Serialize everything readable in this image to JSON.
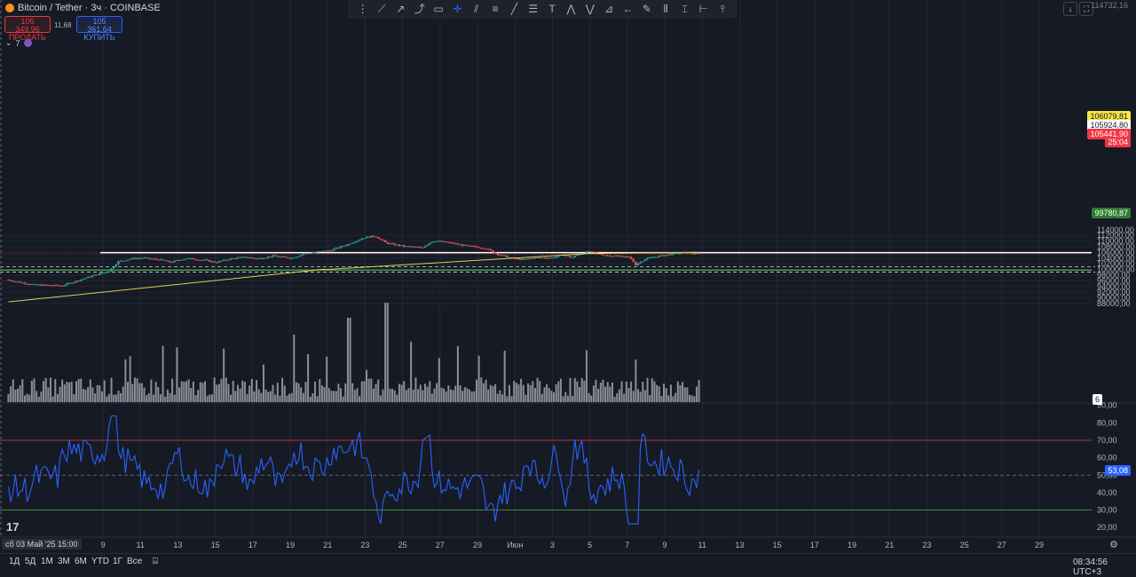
{
  "header": {
    "title": "Bitcoin / Tether · 3ч · COINBASE",
    "sell_price": "105 349,96",
    "sell_label": "ПРОДАТЬ",
    "spread": "11,68",
    "buy_price": "105 361,64",
    "buy_label": "КУПИТЬ",
    "indicators_toggle": "7"
  },
  "toolbar": {
    "tools": [
      "trend-line",
      "ray",
      "cursor",
      "rect",
      "crosshair",
      "channel",
      "fib",
      "parallel",
      "text",
      "pattern",
      "elliott",
      "forecast",
      "arrow",
      "brush",
      "measure",
      "long-position",
      "price-range",
      "date-range",
      "pin"
    ]
  },
  "window_buttons": {
    "down": "↓",
    "fullscreen": "⛶"
  },
  "price_axis": {
    "ticks": [
      "114000,00",
      "112000,00",
      "110000,00",
      "108000,00",
      "106000,00",
      "104000,00",
      "102000,00",
      "100000,00",
      "98000,00",
      "96000,00",
      "94000,00",
      "92000,00",
      "90000,00",
      "88000,00"
    ],
    "top_partial": "114732,16",
    "labels": {
      "yellow": "106079,81",
      "white": "105924,80",
      "red_price": "105441,90",
      "countdown": "25:04",
      "green": "99780,87"
    },
    "volume_badge": "6"
  },
  "rsi_axis": {
    "ticks": [
      "90,00",
      "80,00",
      "70,00",
      "60,00",
      "50,00",
      "40,00",
      "30,00",
      "20,00"
    ],
    "current": "53,08"
  },
  "time_axis": {
    "labels": [
      "9",
      "11",
      "13",
      "15",
      "17",
      "19",
      "21",
      "23",
      "25",
      "27",
      "29",
      "Июн",
      "3",
      "5",
      "7",
      "9",
      "11",
      "13",
      "15",
      "17",
      "19",
      "21",
      "23",
      "25",
      "27",
      "29"
    ],
    "cursor_date": "сб 03 Май '25   15:00"
  },
  "bottom_bar": {
    "timeframes": [
      "1Д",
      "5Д",
      "1М",
      "3М",
      "6М",
      "YTD",
      "1Г",
      "Все"
    ],
    "clock": "08:34:56 UTC+3"
  },
  "colors": {
    "background": "#161a25",
    "up": "#26a69a",
    "down": "#ef5350",
    "ma": "#e0d050",
    "rsi": "#2962ff",
    "grid": "#232733"
  },
  "chart_data": {
    "type": "candlestick",
    "timeframe": "3h",
    "price_range": [
      87000,
      114600
    ],
    "ma_line_color": "yellow",
    "horizontal_lines": {
      "white": 105924.8,
      "red": 105441.9,
      "green": 99780.87,
      "dashed": [
        101000,
        99100
      ]
    },
    "anchors": [
      {
        "d": 0,
        "p": 96400
      },
      {
        "d": 1.5,
        "p": 94600
      },
      {
        "d": 3,
        "p": 94300
      },
      {
        "d": 4,
        "p": 96500
      },
      {
        "d": 5.5,
        "p": 99500
      },
      {
        "d": 6,
        "p": 102800
      },
      {
        "d": 6.7,
        "p": 103800
      },
      {
        "d": 7.3,
        "p": 104100
      },
      {
        "d": 8.2,
        "p": 103400
      },
      {
        "d": 8.8,
        "p": 102600
      },
      {
        "d": 9.6,
        "p": 103900
      },
      {
        "d": 10.6,
        "p": 103300
      },
      {
        "d": 11.2,
        "p": 102500
      },
      {
        "d": 12,
        "p": 103800
      },
      {
        "d": 12.8,
        "p": 104400
      },
      {
        "d": 13.4,
        "p": 103800
      },
      {
        "d": 14.3,
        "p": 104800
      },
      {
        "d": 15.2,
        "p": 104000
      },
      {
        "d": 16,
        "p": 105700
      },
      {
        "d": 17.3,
        "p": 106700
      },
      {
        "d": 18.3,
        "p": 109000
      },
      {
        "d": 19.1,
        "p": 111200
      },
      {
        "d": 19.7,
        "p": 111800
      },
      {
        "d": 20.3,
        "p": 109300
      },
      {
        "d": 21.2,
        "p": 108200
      },
      {
        "d": 22.2,
        "p": 107700
      },
      {
        "d": 22.8,
        "p": 110100
      },
      {
        "d": 23.6,
        "p": 109500
      },
      {
        "d": 24.6,
        "p": 108300
      },
      {
        "d": 25.6,
        "p": 107500
      },
      {
        "d": 26.3,
        "p": 105200
      },
      {
        "d": 26.9,
        "p": 104200
      },
      {
        "d": 27.6,
        "p": 103400
      },
      {
        "d": 28.2,
        "p": 104200
      },
      {
        "d": 29.1,
        "p": 104100
      },
      {
        "d": 29.8,
        "p": 105200
      },
      {
        "d": 30.2,
        "p": 104200
      },
      {
        "d": 30.6,
        "p": 105400
      },
      {
        "d": 31.1,
        "p": 106300
      },
      {
        "d": 31.6,
        "p": 105500
      },
      {
        "d": 32.3,
        "p": 104800
      },
      {
        "d": 33.0,
        "p": 104700
      },
      {
        "d": 33.4,
        "p": 103900
      },
      {
        "d": 33.6,
        "p": 101300
      },
      {
        "d": 33.85,
        "p": 102800
      },
      {
        "d": 34.4,
        "p": 104200
      },
      {
        "d": 35.0,
        "p": 104800
      },
      {
        "d": 35.6,
        "p": 105500
      },
      {
        "d": 36.2,
        "p": 105900
      },
      {
        "d": 36.6,
        "p": 105700
      },
      {
        "d": 37.0,
        "p": 105440
      }
    ],
    "rsi": {
      "overbought": 70,
      "oversold": 30,
      "mid": 50,
      "last": 53.08
    }
  }
}
